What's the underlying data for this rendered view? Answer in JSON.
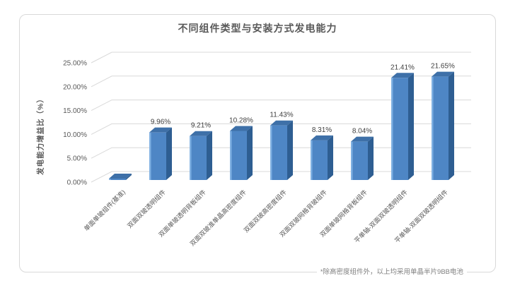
{
  "chart_data": {
    "type": "bar",
    "variant": "3d-column",
    "title": "不同组件类型与安装方式发电能力",
    "ylabel": "发电能力增益比（%）",
    "footnote": "*除高密度组件外，以上均采用单晶半片9BB电池",
    "categories": [
      "单面单玻组件(基准)",
      "双面双玻透明组件",
      "双面单玻透明背板组件",
      "双面双玻准单晶高密度组件",
      "双面双玻高密度组件",
      "双面双玻网格背玻组件",
      "双面单玻网格背板组件",
      "平单轴-双面双玻透明组件",
      "平单轴-双面双玻透明组件"
    ],
    "values": [
      0,
      9.96,
      9.21,
      10.28,
      11.43,
      8.31,
      8.04,
      21.41,
      21.65
    ],
    "value_labels": [
      "",
      "9.96%",
      "9.21%",
      "10.28%",
      "11.43%",
      "8.31%",
      "8.04%",
      "21.41%",
      "21.65%"
    ],
    "yticks": [
      0,
      5,
      10,
      15,
      20,
      25
    ],
    "ytick_labels": [
      "0.00%",
      "5.00%",
      "10.00%",
      "15.00%",
      "20.00%",
      "25.00%"
    ],
    "ylim": [
      0,
      25
    ],
    "grid": true,
    "legend": false,
    "colors": {
      "bar_front": "#4E86C5",
      "bar_front_highlight": "#7FB0E2",
      "bar_top": "#3E70A8",
      "bar_side": "#2E5E92",
      "gridline": "#D9D9D9",
      "axis_text": "#595959",
      "data_label": "#404040",
      "title_text": "#595959",
      "footnote_text": "#808080",
      "panel_border": "#D9D9D9"
    }
  }
}
